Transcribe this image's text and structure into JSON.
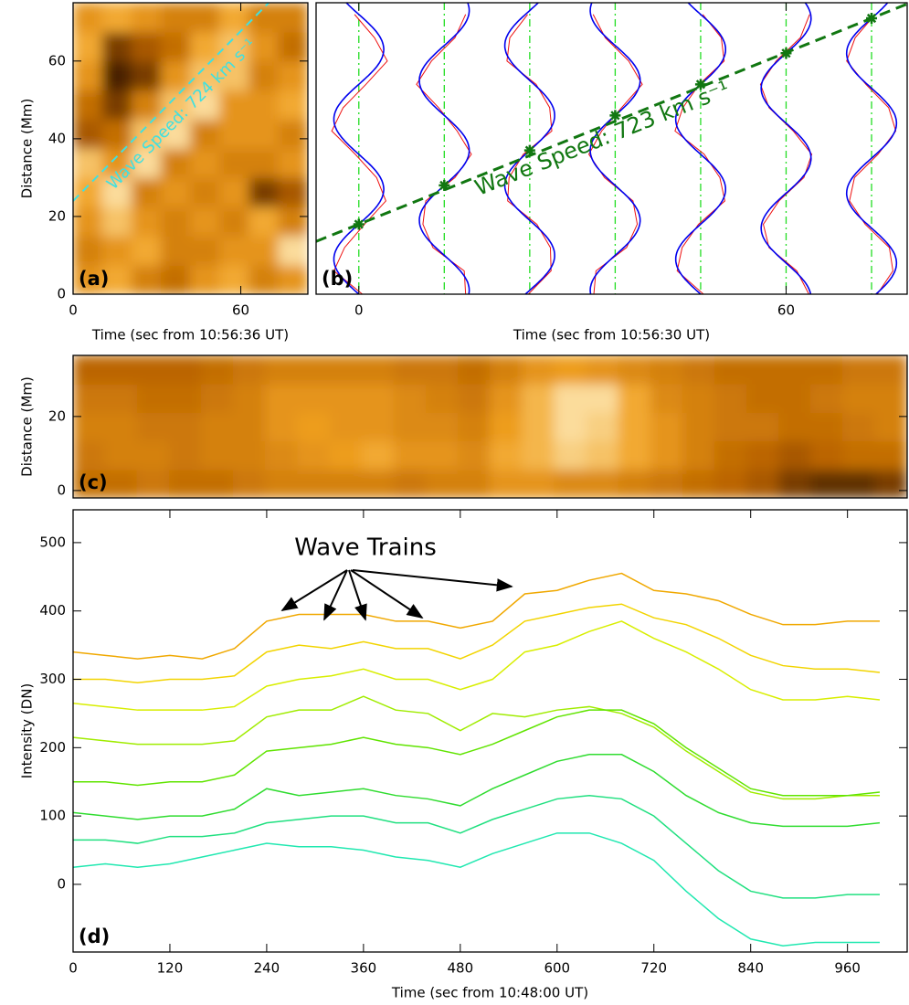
{
  "chart_data": [
    {
      "type": "heatmap",
      "label": "(a)",
      "xlabel": "Time (sec from 10:56:36 UT)",
      "ylabel": "Distance (Mm)",
      "xlim": [
        0,
        84
      ],
      "ylim": [
        0,
        75
      ],
      "xticks": [
        0,
        60
      ],
      "yticks": [
        0,
        20,
        40,
        60
      ],
      "colormap": [
        "#1a0800",
        "#b86200",
        "#f0a020",
        "#fff6d0"
      ],
      "z": [
        [
          0.6,
          0.7,
          0.5,
          0.4,
          0.6,
          0.7,
          0.5,
          0.6
        ],
        [
          0.5,
          0.6,
          0.7,
          0.5,
          0.5,
          0.6,
          0.6,
          0.9
        ],
        [
          0.6,
          0.8,
          0.6,
          0.5,
          0.6,
          0.5,
          0.7,
          0.5
        ],
        [
          0.7,
          0.9,
          0.5,
          0.6,
          0.5,
          0.6,
          0.2,
          0.3
        ],
        [
          0.8,
          0.6,
          0.9,
          0.5,
          0.6,
          0.5,
          0.5,
          0.6
        ],
        [
          0.3,
          0.4,
          0.8,
          0.9,
          0.5,
          0.6,
          0.6,
          0.5
        ],
        [
          0.4,
          0.2,
          0.5,
          0.8,
          0.9,
          0.6,
          0.6,
          0.7
        ],
        [
          0.6,
          0.1,
          0.2,
          0.6,
          0.8,
          0.8,
          0.5,
          0.6
        ],
        [
          0.7,
          0.2,
          0.3,
          0.4,
          0.7,
          0.8,
          0.6,
          0.4
        ],
        [
          0.6,
          0.7,
          0.6,
          0.5,
          0.5,
          0.7,
          0.5,
          0.5
        ]
      ],
      "speed_line": {
        "x": [
          0,
          70
        ],
        "y": [
          24,
          75
        ],
        "color": "#40e0e0"
      },
      "annotation": "Wave Speed: 724 km s⁻¹"
    },
    {
      "type": "profiles",
      "label": "(b)",
      "xlabel": "Time (sec from 10:56:30 UT)",
      "xlim": [
        -6,
        77
      ],
      "ylim": [
        0,
        75
      ],
      "xticks": [
        0,
        60
      ],
      "distance": [
        0,
        6,
        12,
        18,
        24,
        30,
        36,
        42,
        48,
        54,
        60,
        66,
        72
      ],
      "fit": {
        "amplitude": 3.5,
        "period": 36,
        "color": "#0000ee"
      },
      "profile_color": "#ee1010",
      "guide_color": "#22dd22",
      "star_color": "#117711",
      "line_color": "#117711",
      "profiles": [
        {
          "time": 0,
          "star_distance": 18,
          "values": [
            0.5,
            -3.5,
            -2,
            0.8,
            3.8,
            2.5,
            -0.5,
            -3.8,
            -2.2,
            1,
            4,
            2.2,
            -0.6
          ]
        },
        {
          "time": 12,
          "star_distance": 28,
          "values": [
            3,
            2.8,
            -1.6,
            -3,
            -2.6,
            1.5,
            3.8,
            1.8,
            -0.8,
            -3.9,
            -1.8,
            1.5,
            3
          ]
        },
        {
          "time": 24,
          "star_distance": 37,
          "values": [
            -0.2,
            3,
            2.9,
            1,
            -3.1,
            -2.9,
            -0.9,
            3.1,
            2.8,
            0.9,
            -3.2,
            -2.8,
            -0.3
          ]
        },
        {
          "time": 36,
          "star_distance": 46,
          "values": [
            -3,
            -2.7,
            1.6,
            3.1,
            2.5,
            -1.5,
            -3.7,
            -1.9,
            0.9,
            3.8,
            1.9,
            -1.4,
            -3.1
          ]
        },
        {
          "time": 48,
          "star_distance": 54,
          "values": [
            0.4,
            -3.3,
            -2.6,
            -0.3,
            3.4,
            2.7,
            0.5,
            -3.6,
            -2.5,
            -0.2,
            3.3,
            2.9,
            0.3
          ]
        },
        {
          "time": 60,
          "star_distance": 62,
          "values": [
            3.2,
            1.5,
            -2.4,
            -3.2,
            -1,
            2.5,
            3.6,
            1,
            -2.4,
            -3.6,
            -1.4,
            2,
            3.3
          ]
        },
        {
          "time": 72,
          "star_distance": 71,
          "values": [
            0.8,
            3,
            2.5,
            -0.9,
            -3.1,
            -2.4,
            0.9,
            3.4,
            2.4,
            -0.8,
            -3.5,
            -2.3,
            0.5
          ]
        }
      ],
      "annotation": "Wave Speed: 723 km s⁻¹"
    },
    {
      "type": "heatmap",
      "label": "(c)",
      "ylabel": "Distance (Mm)",
      "xlim": [
        0,
        1034
      ],
      "ylim": [
        -2,
        36.5
      ],
      "yticks": [
        0,
        20
      ],
      "colormap": [
        "#1a0800",
        "#b86200",
        "#f0a020",
        "#fff6d0"
      ],
      "z": [
        [
          0.4,
          0.4,
          0.45,
          0.4,
          0.4,
          0.45,
          0.5,
          0.5,
          0.5,
          0.5,
          0.45,
          0.5,
          0.5,
          0.6,
          0.6,
          0.55,
          0.55,
          0.5,
          0.45,
          0.4,
          0.35,
          0.3,
          0.2,
          0.15,
          0.15,
          0.2
        ],
        [
          0.45,
          0.5,
          0.5,
          0.45,
          0.5,
          0.5,
          0.55,
          0.6,
          0.65,
          0.7,
          0.6,
          0.6,
          0.55,
          0.7,
          0.75,
          0.85,
          0.8,
          0.7,
          0.6,
          0.5,
          0.4,
          0.35,
          0.3,
          0.35,
          0.4,
          0.4
        ],
        [
          0.5,
          0.5,
          0.45,
          0.45,
          0.5,
          0.5,
          0.6,
          0.65,
          0.6,
          0.6,
          0.55,
          0.55,
          0.5,
          0.65,
          0.75,
          0.9,
          0.85,
          0.7,
          0.6,
          0.5,
          0.45,
          0.45,
          0.4,
          0.4,
          0.45,
          0.5
        ],
        [
          0.45,
          0.45,
          0.4,
          0.4,
          0.45,
          0.5,
          0.6,
          0.6,
          0.6,
          0.6,
          0.55,
          0.5,
          0.45,
          0.6,
          0.75,
          0.9,
          0.9,
          0.7,
          0.55,
          0.5,
          0.45,
          0.4,
          0.4,
          0.45,
          0.5,
          0.5
        ],
        [
          0.35,
          0.35,
          0.35,
          0.35,
          0.4,
          0.45,
          0.5,
          0.5,
          0.5,
          0.5,
          0.45,
          0.45,
          0.4,
          0.5,
          0.6,
          0.65,
          0.6,
          0.55,
          0.5,
          0.45,
          0.4,
          0.4,
          0.4,
          0.4,
          0.45,
          0.45
        ]
      ]
    },
    {
      "type": "line",
      "label": "(d)",
      "xlabel": "Time (sec from 10:48:00 UT)",
      "ylabel": "Intensity (DN)",
      "xlim": [
        0,
        1034
      ],
      "ylim": [
        -99,
        548
      ],
      "xticks": [
        0,
        120,
        240,
        360,
        480,
        600,
        720,
        840,
        960
      ],
      "yticks": [
        0,
        100,
        200,
        300,
        400,
        500
      ],
      "x": [
        0,
        40,
        80,
        120,
        160,
        200,
        240,
        280,
        320,
        360,
        400,
        440,
        480,
        520,
        560,
        600,
        640,
        680,
        720,
        760,
        800,
        840,
        880,
        920,
        960,
        1000
      ],
      "series": [
        {
          "color": "#f0a800",
          "values": [
            340,
            335,
            330,
            335,
            330,
            345,
            385,
            395,
            395,
            395,
            385,
            385,
            375,
            385,
            425,
            430,
            445,
            455,
            430,
            425,
            415,
            395,
            380,
            380,
            385,
            385
          ]
        },
        {
          "color": "#f2d400",
          "values": [
            300,
            300,
            295,
            300,
            300,
            305,
            340,
            350,
            345,
            355,
            345,
            345,
            330,
            350,
            385,
            395,
            405,
            410,
            390,
            380,
            360,
            335,
            320,
            315,
            315,
            310
          ]
        },
        {
          "color": "#d8ee00",
          "values": [
            265,
            260,
            255,
            255,
            255,
            260,
            290,
            300,
            305,
            315,
            300,
            300,
            285,
            300,
            340,
            350,
            370,
            385,
            360,
            340,
            315,
            285,
            270,
            270,
            275,
            270
          ]
        },
        {
          "color": "#a0ec00",
          "values": [
            215,
            210,
            205,
            205,
            205,
            210,
            245,
            255,
            255,
            275,
            255,
            250,
            225,
            250,
            245,
            255,
            260,
            250,
            230,
            195,
            165,
            135,
            125,
            125,
            130,
            130
          ]
        },
        {
          "color": "#60e400",
          "values": [
            150,
            150,
            145,
            150,
            150,
            160,
            195,
            200,
            205,
            215,
            205,
            200,
            190,
            205,
            225,
            245,
            255,
            255,
            235,
            200,
            170,
            140,
            130,
            130,
            130,
            135
          ]
        },
        {
          "color": "#30dc30",
          "values": [
            105,
            100,
            95,
            100,
            100,
            110,
            140,
            130,
            135,
            140,
            130,
            125,
            115,
            140,
            160,
            180,
            190,
            190,
            165,
            130,
            105,
            90,
            85,
            85,
            85,
            90
          ]
        },
        {
          "color": "#20e080",
          "values": [
            65,
            65,
            60,
            70,
            70,
            75,
            90,
            95,
            100,
            100,
            90,
            90,
            75,
            95,
            110,
            125,
            130,
            125,
            100,
            60,
            20,
            -10,
            -20,
            -20,
            -15,
            -15
          ]
        },
        {
          "color": "#20e8b0",
          "values": [
            25,
            30,
            25,
            30,
            40,
            50,
            60,
            55,
            55,
            50,
            40,
            35,
            25,
            45,
            60,
            75,
            75,
            60,
            35,
            -10,
            -50,
            -80,
            -90,
            -85,
            -85,
            -85
          ]
        }
      ],
      "annotation": "Wave Trains"
    }
  ]
}
